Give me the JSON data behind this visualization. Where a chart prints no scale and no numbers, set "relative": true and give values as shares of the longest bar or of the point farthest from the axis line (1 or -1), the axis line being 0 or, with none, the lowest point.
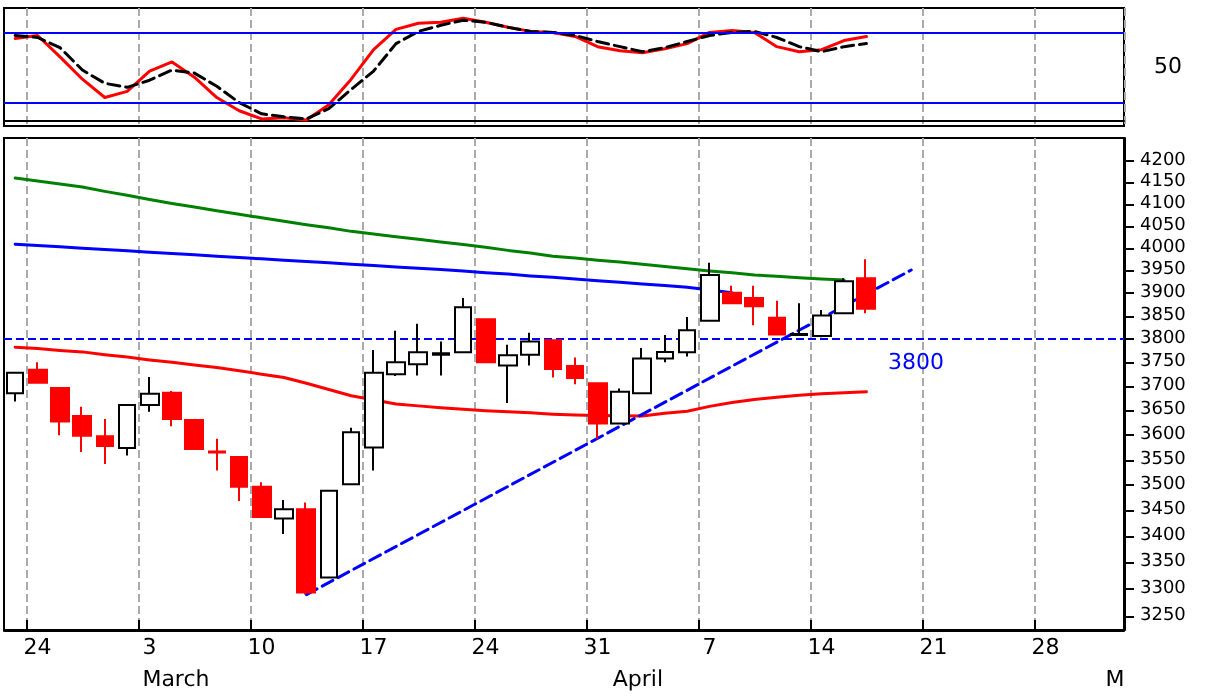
{
  "chart_data": [
    {
      "type": "line",
      "relative": true,
      "categories": [
        null,
        null,
        null,
        null,
        null,
        null,
        null,
        null,
        null,
        null,
        null,
        null,
        null,
        null,
        null,
        null,
        null,
        null,
        null,
        null,
        null,
        null,
        null,
        null,
        null,
        null,
        null,
        null,
        null,
        null,
        null,
        null,
        null,
        null,
        null,
        null,
        null,
        null,
        null,
        null,
        null,
        null,
        null,
        null,
        null,
        null,
        null,
        null,
        null,
        null
      ],
      "series": [
        {
          "color": "#ff0000",
          "values": [
            0.8,
            0.83,
            0.62,
            0.4,
            0.22,
            0.28,
            0.48,
            0.57,
            0.42,
            0.22,
            0.09,
            0.01,
            0.02,
            0.0,
            0.15,
            0.4,
            0.69,
            0.89,
            0.95,
            0.96,
            1.0,
            0.96,
            0.91,
            0.87,
            0.86,
            0.82,
            0.72,
            0.68,
            0.66,
            0.7,
            0.75,
            0.86,
            0.88,
            0.86,
            0.72,
            0.67,
            0.69,
            0.78,
            0.82,
            null,
            null,
            null,
            null,
            null,
            null,
            null,
            null,
            null,
            null,
            null
          ]
        },
        {
          "color": "#000000",
          "line_style": "dashed",
          "values": [
            0.83,
            0.81,
            0.71,
            0.49,
            0.36,
            0.32,
            0.39,
            0.49,
            0.46,
            0.33,
            0.17,
            0.06,
            0.03,
            0.01,
            0.11,
            0.3,
            0.48,
            0.75,
            0.87,
            0.93,
            0.98,
            0.96,
            0.91,
            0.87,
            0.86,
            0.83,
            0.77,
            0.72,
            0.67,
            0.71,
            0.77,
            0.83,
            0.86,
            0.87,
            0.81,
            0.72,
            0.67,
            0.72,
            0.75,
            null,
            null,
            null,
            null,
            null,
            null,
            null,
            null,
            null,
            null,
            null
          ]
        }
      ],
      "ref_lines": [
        {
          "axis": "y",
          "value": 0.86,
          "color": "#0000ff"
        },
        {
          "axis": "y",
          "value": 0.17,
          "color": "#0000ff"
        }
      ],
      "annotations": [
        "50"
      ],
      "grid": "x",
      "marker": "none"
    },
    {
      "type": "candlestick",
      "log": true,
      "categories": [
        null,
        "24",
        null,
        null,
        null,
        null,
        "3",
        null,
        null,
        null,
        null,
        "10",
        null,
        null,
        null,
        null,
        "17",
        null,
        null,
        null,
        null,
        "24",
        null,
        null,
        null,
        null,
        "31",
        null,
        null,
        null,
        null,
        "7",
        null,
        null,
        null,
        null,
        "14",
        null,
        null,
        null,
        null,
        "21",
        null,
        null,
        null,
        null,
        "28",
        null,
        null,
        null
      ],
      "ohlc": [
        [
          3685,
          3730,
          3668,
          3728
        ],
        [
          3734,
          3750,
          3705,
          3707
        ],
        [
          3696,
          3698,
          3599,
          3627
        ],
        [
          3638,
          3657,
          3565,
          3598
        ],
        [
          3597,
          3632,
          3541,
          3577
        ],
        [
          3573,
          3661,
          3558,
          3661
        ],
        [
          3661,
          3719,
          3647,
          3684
        ],
        [
          3686,
          3690,
          3617,
          3632
        ],
        [
          3630,
          3632,
          3569,
          3571
        ],
        [
          3566,
          3592,
          3528,
          3564
        ],
        [
          3555,
          3556,
          3468,
          3496
        ],
        [
          3496,
          3505,
          3437,
          3437
        ],
        [
          3434,
          3470,
          3404,
          3452
        ],
        [
          3452,
          3465,
          3290,
          3294
        ],
        [
          3322,
          3488,
          3322,
          3488
        ],
        [
          3501,
          3614,
          3501,
          3605
        ],
        [
          3574,
          3776,
          3528,
          3728
        ],
        [
          3725,
          3817,
          3721,
          3750
        ],
        [
          3746,
          3832,
          3722,
          3771
        ],
        [
          3766,
          3794,
          3722,
          3769
        ],
        [
          3771,
          3888,
          3771,
          3868
        ],
        [
          3842,
          3844,
          3748,
          3750
        ],
        [
          3743,
          3787,
          3665,
          3765
        ],
        [
          3766,
          3813,
          3743,
          3794
        ],
        [
          3797,
          3797,
          3718,
          3736
        ],
        [
          3742,
          3760,
          3704,
          3717
        ],
        [
          3706,
          3706,
          3592,
          3623
        ],
        [
          3623,
          3695,
          3621,
          3688
        ],
        [
          3685,
          3780,
          3685,
          3758
        ],
        [
          3758,
          3808,
          3750,
          3772
        ],
        [
          3771,
          3847,
          3762,
          3818
        ],
        [
          3839,
          3966,
          3839,
          3939
        ],
        [
          3900,
          3915,
          3877,
          3877
        ],
        [
          3888,
          3915,
          3829,
          3870
        ],
        [
          3845,
          3882,
          3809,
          3809
        ],
        [
          3808,
          3877,
          3806,
          3810
        ],
        [
          3806,
          3862,
          3803,
          3850
        ],
        [
          3855,
          3932,
          3855,
          3925
        ],
        [
          3932,
          3974,
          3855,
          3865
        ],
        null,
        null,
        null,
        null,
        null,
        null,
        null,
        null,
        null,
        null,
        null
      ],
      "colors": [
        "#ffffff",
        "#ff0000",
        "#ff0000",
        "#ff0000",
        "#ff0000",
        "#ffffff",
        "#ffffff",
        "#ff0000",
        "#ff0000",
        "#ff0000",
        "#ff0000",
        "#ff0000",
        "#ffffff",
        "#ff0000",
        "#ffffff",
        "#ffffff",
        "#ffffff",
        "#ffffff",
        "#ffffff",
        "#ffffff",
        "#ffffff",
        "#ff0000",
        "#ffffff",
        "#ffffff",
        "#ff0000",
        "#ff0000",
        "#ff0000",
        "#ffffff",
        "#ffffff",
        "#ffffff",
        "#ffffff",
        "#ffffff",
        "#ff0000",
        "#ff0000",
        "#ff0000",
        "#ffffff",
        "#ffffff",
        "#ffffff",
        "#ff0000",
        null,
        null,
        null,
        null,
        null,
        null,
        null,
        null,
        null,
        null,
        null
      ],
      "series": [
        {
          "type": "line",
          "color": "#008000",
          "values": [
            4160,
            4153,
            4146,
            4139,
            4129,
            4120,
            4110,
            4101,
            4093,
            4084,
            4076,
            4068,
            4060,
            4052,
            4045,
            4037,
            4031,
            4025,
            4019,
            4013,
            4007,
            4001,
            3994,
            3988,
            3981,
            3977,
            3972,
            3968,
            3963,
            3958,
            3953,
            3948,
            3944,
            3939,
            3936,
            3933,
            3930,
            3928,
            null,
            null,
            null,
            null,
            null,
            null,
            null,
            null,
            null,
            null,
            null,
            null
          ]
        },
        {
          "type": "line",
          "color": "#0000ff",
          "values": [
            4008,
            4005,
            4002,
            3999,
            3996,
            3993,
            3990,
            3987,
            3984,
            3981,
            3978,
            3975,
            3972,
            3969,
            3966,
            3963,
            3960,
            3957,
            3954,
            3951,
            3948,
            3944,
            3941,
            3937,
            3934,
            3930,
            3926,
            3923,
            3919,
            3916,
            3912,
            null,
            3900,
            null,
            null,
            null,
            null,
            null,
            null,
            null,
            null,
            null,
            null,
            null,
            null,
            null,
            null,
            null,
            null,
            null
          ]
        },
        {
          "type": "line",
          "color": "#ff0000",
          "values": [
            3782,
            3779,
            3775,
            3772,
            3766,
            3761,
            3755,
            3750,
            3744,
            3739,
            3732,
            3725,
            3718,
            3706,
            3693,
            3680,
            null,
            3663,
            3659,
            3655,
            3652,
            3649,
            3647,
            3645,
            3642,
            3640,
            3639,
            null,
            3638,
            3644,
            3648,
            3658,
            3666,
            3672,
            3677,
            3681,
            3684,
            3686,
            3688,
            null,
            null,
            null,
            null,
            null,
            null,
            null,
            null,
            null,
            null,
            null
          ]
        },
        {
          "type": "line",
          "color": "#0000ff",
          "line_style": "dashed",
          "values": [
            null,
            null,
            null,
            null,
            null,
            null,
            null,
            null,
            null,
            null,
            null,
            null,
            null,
            3290,
            null,
            null,
            null,
            null,
            null,
            null,
            null,
            null,
            null,
            null,
            null,
            null,
            null,
            null,
            null,
            null,
            null,
            null,
            null,
            null,
            null,
            null,
            null,
            null,
            null,
            null,
            3950,
            null,
            null,
            null,
            null,
            null,
            null,
            null,
            null,
            null
          ]
        }
      ],
      "ylim": [
        3225,
        4255
      ],
      "yticks": [
        3250,
        3300,
        3350,
        3400,
        3450,
        3500,
        3550,
        3600,
        3650,
        3700,
        3750,
        3800,
        3850,
        3900,
        3950,
        4000,
        4050,
        4100,
        4150,
        4200
      ],
      "ref_lines": [
        {
          "axis": "y",
          "value": 3800,
          "label": "3800",
          "color": "#0000ff",
          "line_style": "dashed"
        }
      ],
      "annotations": [
        "March",
        "April",
        "M"
      ],
      "grid": "x",
      "marker": "none"
    }
  ]
}
